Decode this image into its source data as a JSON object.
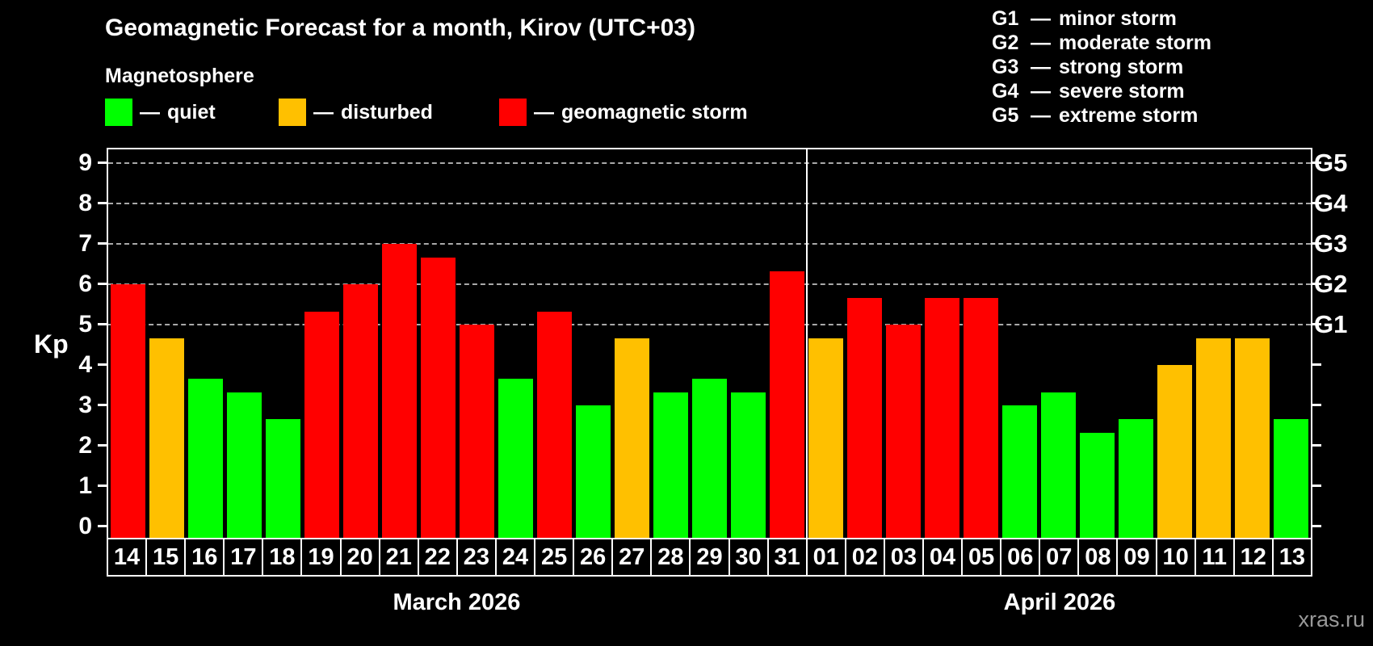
{
  "title": "Geomagnetic Forecast for a month, Kirov (UTC+03)",
  "subtitle": "Magnetosphere",
  "ylabel": "Kp",
  "watermark": "xras.ru",
  "separator": "—",
  "legend": {
    "items": [
      {
        "name": "quiet",
        "label": "quiet",
        "color": "#00ff00"
      },
      {
        "name": "disturbed",
        "label": "disturbed",
        "color": "#ffc000"
      },
      {
        "name": "geomagnetic-storm",
        "label": "geomagnetic storm",
        "color": "#ff0000"
      }
    ]
  },
  "storm_scale": {
    "items": [
      {
        "code": "G1",
        "label": "minor storm"
      },
      {
        "code": "G2",
        "label": "moderate storm"
      },
      {
        "code": "G3",
        "label": "strong storm"
      },
      {
        "code": "G4",
        "label": "severe storm"
      },
      {
        "code": "G5",
        "label": "extreme storm"
      }
    ]
  },
  "chart_data": {
    "type": "bar",
    "title": "Geomagnetic Forecast for a month, Kirov (UTC+03)",
    "ylabel": "Kp",
    "ylim": [
      0,
      9
    ],
    "yticks": [
      0,
      1,
      2,
      3,
      4,
      5,
      6,
      7,
      8,
      9
    ],
    "grid_levels": [
      5,
      6,
      7,
      8,
      9
    ],
    "grid": "dashed",
    "categories": [
      "14",
      "15",
      "16",
      "17",
      "18",
      "19",
      "20",
      "21",
      "22",
      "23",
      "24",
      "25",
      "26",
      "27",
      "28",
      "29",
      "30",
      "31",
      "01",
      "02",
      "03",
      "04",
      "05",
      "06",
      "07",
      "08",
      "09",
      "10",
      "11",
      "12",
      "13"
    ],
    "values": [
      6,
      4.67,
      3.67,
      3.33,
      2.67,
      5.33,
      6,
      7,
      6.67,
      5,
      3.67,
      5.33,
      3,
      4.67,
      3.33,
      3.67,
      3.33,
      6.33,
      4.67,
      5.67,
      5,
      5.67,
      5.67,
      3,
      3.33,
      2.33,
      2.67,
      4,
      4.67,
      4.67,
      2.67
    ],
    "classes": [
      "storm",
      "disturbed",
      "quiet",
      "quiet",
      "quiet",
      "storm",
      "storm",
      "storm",
      "storm",
      "storm",
      "quiet",
      "storm",
      "quiet",
      "disturbed",
      "quiet",
      "quiet",
      "quiet",
      "storm",
      "disturbed",
      "storm",
      "storm",
      "storm",
      "storm",
      "quiet",
      "quiet",
      "quiet",
      "quiet",
      "disturbed",
      "disturbed",
      "disturbed",
      "quiet"
    ],
    "class_colors": {
      "quiet": "#00ff00",
      "disturbed": "#ffc000",
      "storm": "#ff0000"
    },
    "right_axis": {
      "labels": [
        "G1",
        "G2",
        "G3",
        "G4",
        "G5"
      ],
      "positions": [
        5,
        6,
        7,
        8,
        9
      ]
    },
    "months": [
      {
        "label": "March 2026",
        "days": 18
      },
      {
        "label": "April 2026",
        "days": 13
      }
    ],
    "month_divider_after_index": 17
  }
}
